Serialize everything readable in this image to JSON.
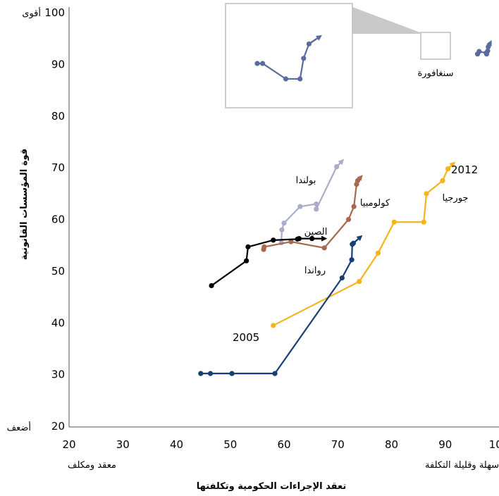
{
  "chart_data": {
    "type": "line",
    "xlabel": "تعقد الإجراءات الحكومية وتكلفتها",
    "ylabel": "قوة المؤسسات القانونية",
    "xlim": [
      20,
      100
    ],
    "ylim": [
      20,
      100
    ],
    "x_ticks": [
      20,
      30,
      40,
      50,
      60,
      70,
      80,
      90,
      100
    ],
    "y_ticks": [
      20,
      30,
      40,
      50,
      60,
      70,
      80,
      90,
      100
    ],
    "x_low_label": "معقد ومكلف",
    "x_high_label": "سهلة وقليلة التكلفة",
    "y_high_label": "أقوى",
    "y_low_label": "أضعف",
    "start_year_label": "2005",
    "end_year_label": "2012",
    "series": [
      {
        "name": "جورجيا",
        "color": "#f5b31c",
        "x": [
          58,
          74,
          77.5,
          80.5,
          86,
          86.5,
          89.5,
          90.5
        ],
        "y": [
          39.5,
          48,
          53.5,
          59.5,
          59.5,
          65,
          67.5,
          69.8
        ],
        "arrow_to": [
          91.5,
          70.8
        ]
      },
      {
        "name": "سنغافورة",
        "color": "#5a6b9e",
        "x": [
          96,
          96.3,
          97.6,
          97.7,
          97.9,
          98
        ],
        "y": [
          92,
          92.5,
          92.2,
          92.0,
          92.6,
          93.4
        ],
        "arrow_to": [
          98.4,
          94.2
        ]
      },
      {
        "name": "بولندا",
        "color": "#a9adc8",
        "x": [
          59.5,
          59.6,
          60,
          63,
          66,
          66,
          69.8
        ],
        "y": [
          55.5,
          58,
          59.3,
          62.5,
          63,
          62,
          70.2
        ],
        "arrow_to": [
          70.8,
          71.3
        ]
      },
      {
        "name": "كولومبيا",
        "color": "#a86a4f",
        "x": [
          56.2,
          56.3,
          61.3,
          67.5,
          72,
          73,
          73.5,
          73.7
        ],
        "y": [
          54.2,
          54.7,
          55.7,
          54.5,
          60,
          62.5,
          66.8,
          67.5
        ],
        "arrow_to": [
          74.3,
          68.2
        ]
      },
      {
        "name": "الصين",
        "color": "#000000",
        "x": [
          46.5,
          53,
          53.3,
          58,
          62.5,
          62.8,
          65.2
        ],
        "y": [
          47.2,
          52,
          54.7,
          56,
          56.2,
          56.3,
          56.3
        ],
        "arrow_to": [
          67.5,
          56.3
        ]
      },
      {
        "name": "رواندا",
        "color": "#173f75",
        "x": [
          44.5,
          46.3,
          50.3,
          58.3,
          70.8,
          72.6,
          72.7,
          72.9
        ],
        "y": [
          30.2,
          30.2,
          30.2,
          30.2,
          48.7,
          52.2,
          55.2,
          55.4
        ],
        "arrow_to": [
          74.2,
          56.6
        ]
      }
    ]
  },
  "inset": {
    "series_name": "سنغافورة",
    "color": "#5a6b9e",
    "points": [
      [
        92,
        91
      ],
      [
        92.3,
        91
      ],
      [
        93.6,
        89.5
      ],
      [
        94.4,
        89.5
      ],
      [
        94.6,
        91.5
      ],
      [
        94.9,
        92.9
      ]
    ],
    "arrow_to": [
      95.5,
      93.6
    ]
  }
}
